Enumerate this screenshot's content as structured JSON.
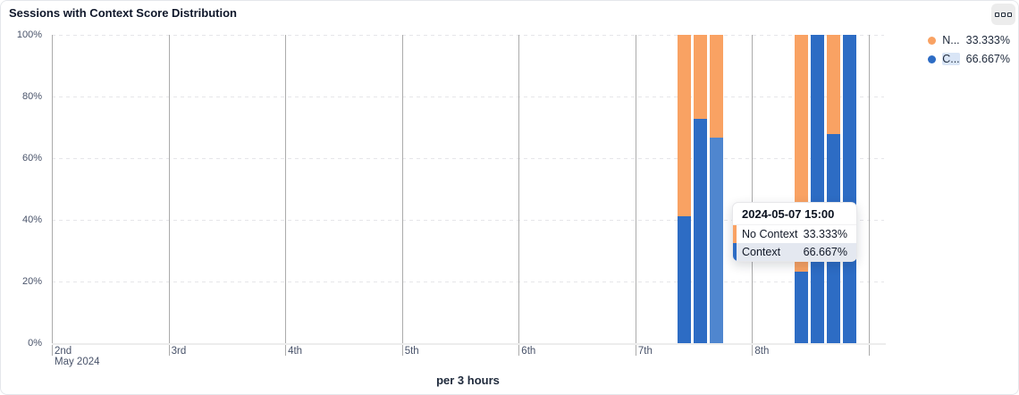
{
  "header": {
    "title": "Sessions with Context Score Distribution",
    "menu_icon": "three-squares"
  },
  "legend": {
    "items": [
      {
        "label_abbrev": "N...",
        "value": "33.333%",
        "color": "#f9a263",
        "highlighted": false
      },
      {
        "label_abbrev": "C...",
        "value": "66.667%",
        "color": "#2d6cc4",
        "highlighted": true
      }
    ]
  },
  "tooltip": {
    "title": "2024-05-07 15:00",
    "rows": [
      {
        "label": "No Context",
        "value": "33.333%",
        "color": "#f9a263",
        "highlighted": false
      },
      {
        "label": "Context",
        "value": "66.667%",
        "color": "#2d6cc4",
        "highlighted": true
      }
    ]
  },
  "chart_data": {
    "type": "bar",
    "stacked": true,
    "title": "Sessions with Context Score Distribution",
    "xlabel": "per 3 hours",
    "x_subtitle": "May 2024",
    "ylabel": "",
    "ylim": [
      0,
      100
    ],
    "grid": true,
    "legend_position": "top-right",
    "y_ticks": [
      "0%",
      "20%",
      "40%",
      "60%",
      "80%",
      "100%"
    ],
    "x_ticks": [
      "2nd",
      "3rd",
      "4th",
      "5th",
      "6th",
      "7th",
      "8th"
    ],
    "series_names": [
      "Context",
      "No Context"
    ],
    "colors": {
      "context": "#2d6cc4",
      "context_highlight": "#4f86cf",
      "no_context": "#f9a263"
    },
    "bars": [
      {
        "time": "2024-05-07 09:00",
        "context": 41.2,
        "no_context": 58.8,
        "highlighted": false
      },
      {
        "time": "2024-05-07 12:00",
        "context": 72.7,
        "no_context": 27.3,
        "highlighted": false
      },
      {
        "time": "2024-05-07 15:00",
        "context": 66.667,
        "no_context": 33.333,
        "highlighted": true
      },
      {
        "time": "2024-05-08 09:00",
        "context": 23.2,
        "no_context": 76.8,
        "highlighted": false
      },
      {
        "time": "2024-05-08 12:00",
        "context": 100,
        "no_context": 0,
        "highlighted": false
      },
      {
        "time": "2024-05-08 15:00",
        "context": 67.8,
        "no_context": 32.2,
        "highlighted": false
      },
      {
        "time": "2024-05-08 18:00",
        "context": 100,
        "no_context": 0,
        "highlighted": false
      }
    ]
  }
}
